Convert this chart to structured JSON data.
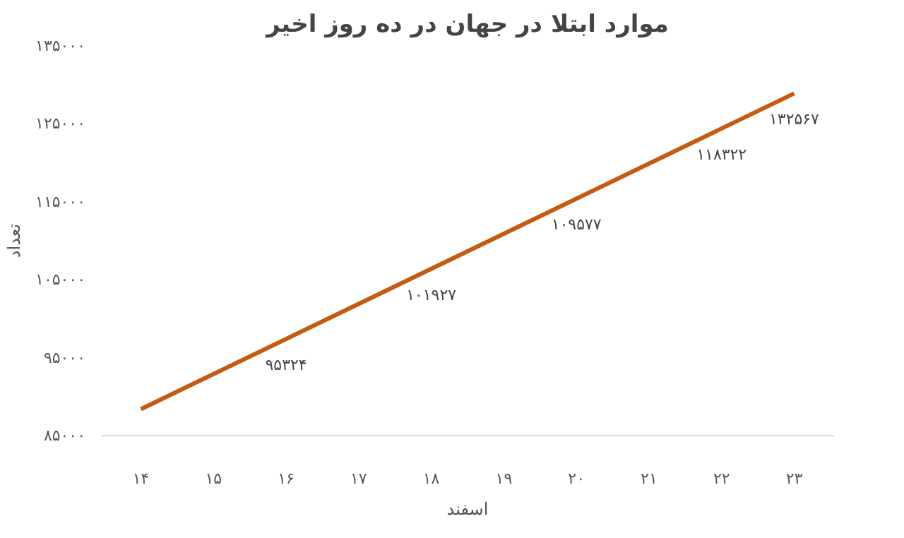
{
  "chart_data": {
    "type": "line",
    "title": "موارد ابتلا در جهان در ده روز اخیر",
    "xlabel": "اسفند",
    "ylabel": "تعداد",
    "series": [
      {
        "color": "#c55a11",
        "x": [
          14,
          23
        ],
        "values": [
          88400,
          128900
        ]
      }
    ],
    "annotations": [
      {
        "text": "۹۵۳۲۴",
        "x": 16,
        "y": 97400
      },
      {
        "text": "۱۰۱۹۲۷",
        "x": 18,
        "y": 106400
      },
      {
        "text": "۱۰۹۵۷۷",
        "x": 20,
        "y": 115400
      },
      {
        "text": "۱۱۸۳۲۲",
        "x": 22,
        "y": 124400
      },
      {
        "text": "۱۳۲۵۶۷",
        "x": 23,
        "y": 128900
      }
    ],
    "grid": false,
    "xlim": [
      13.45,
      23.55
    ],
    "ylim": [
      85000,
      135000
    ],
    "xticks": [
      {
        "value": 14,
        "label": "۱۴"
      },
      {
        "value": 15,
        "label": "۱۵"
      },
      {
        "value": 16,
        "label": "۱۶"
      },
      {
        "value": 17,
        "label": "۱۷"
      },
      {
        "value": 18,
        "label": "۱۸"
      },
      {
        "value": 19,
        "label": "۱۹"
      },
      {
        "value": 20,
        "label": "۲۰"
      },
      {
        "value": 21,
        "label": "۲۱"
      },
      {
        "value": 22,
        "label": "۲۲"
      },
      {
        "value": 23,
        "label": "۲۳"
      }
    ],
    "yticks": [
      {
        "value": 85000,
        "label": "۸۵۰۰۰"
      },
      {
        "value": 95000,
        "label": "۹۵۰۰۰"
      },
      {
        "value": 105000,
        "label": "۱۰۵۰۰۰"
      },
      {
        "value": 115000,
        "label": "۱۱۵۰۰۰"
      },
      {
        "value": 125000,
        "label": "۱۲۵۰۰۰"
      },
      {
        "value": 135000,
        "label": "۱۳۵۰۰۰"
      }
    ],
    "marker": "none",
    "line_style": "solid"
  }
}
